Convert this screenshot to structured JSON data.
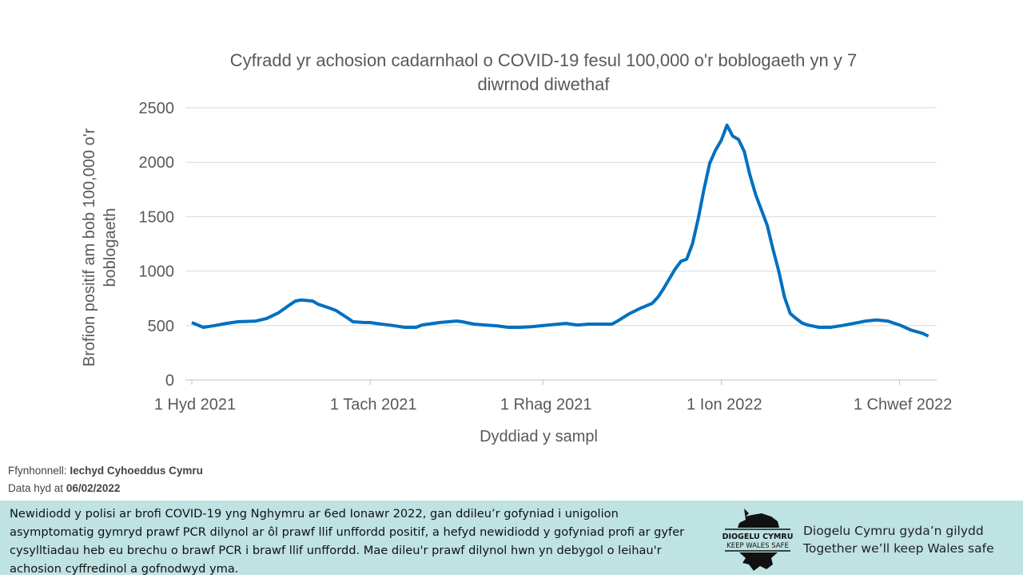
{
  "chart_data": {
    "type": "line",
    "title": "Cyfradd yr achosion cadarnhaol o COVID-19 fesul 100,000 o'r boblogaeth yn y 7 diwrnod diwethaf",
    "title_lines": [
      "Cyfradd yr achosion cadarnhaol o COVID-19 fesul 100,000 o'r boblogaeth yn y 7",
      "diwrnod diwethaf"
    ],
    "xlabel": "Dyddiad y sampl",
    "ylabel_lines": [
      "Brofion positif  am bob 100,000 o'r",
      "boblogaeth"
    ],
    "ylim": [
      0,
      2500
    ],
    "yticks": [
      0,
      500,
      1000,
      1500,
      2000,
      2500
    ],
    "xlim": [
      "2021-10-01",
      "2022-02-07"
    ],
    "xticks": [
      {
        "date": "2021-10-01",
        "label": "1 Hyd 2021"
      },
      {
        "date": "2021-11-01",
        "label": "1 Tach 2021"
      },
      {
        "date": "2021-12-01",
        "label": "1 Rhag 2021"
      },
      {
        "date": "2022-01-01",
        "label": "1 Ion 2022"
      },
      {
        "date": "2022-02-01",
        "label": "1 Chwef 2022"
      }
    ],
    "grid": true,
    "color": "#0070c0",
    "x": [
      "2021-10-01",
      "2021-10-03",
      "2021-10-05",
      "2021-10-07",
      "2021-10-09",
      "2021-10-12",
      "2021-10-14",
      "2021-10-16",
      "2021-10-18",
      "2021-10-19",
      "2021-10-20",
      "2021-10-22",
      "2021-10-23",
      "2021-10-25",
      "2021-10-26",
      "2021-10-28",
      "2021-10-29",
      "2021-10-31",
      "2021-11-01",
      "2021-11-02",
      "2021-11-05",
      "2021-11-07",
      "2021-11-09",
      "2021-11-10",
      "2021-11-13",
      "2021-11-16",
      "2021-11-17",
      "2021-11-19",
      "2021-11-21",
      "2021-11-23",
      "2021-11-25",
      "2021-11-27",
      "2021-11-29",
      "2021-12-02",
      "2021-12-05",
      "2021-12-07",
      "2021-12-09",
      "2021-12-13",
      "2021-12-14",
      "2021-12-16",
      "2021-12-18",
      "2021-12-20",
      "2021-12-21",
      "2021-12-22",
      "2021-12-23",
      "2021-12-24",
      "2021-12-25",
      "2021-12-26",
      "2021-12-27",
      "2021-12-28",
      "2021-12-29",
      "2021-12-30",
      "2021-12-31",
      "2022-01-01",
      "2022-01-02",
      "2022-01-03",
      "2022-01-04",
      "2022-01-05",
      "2022-01-06",
      "2022-01-07",
      "2022-01-08",
      "2022-01-09",
      "2022-01-10",
      "2022-01-11",
      "2022-01-12",
      "2022-01-13",
      "2022-01-14",
      "2022-01-15",
      "2022-01-16",
      "2022-01-17",
      "2022-01-18",
      "2022-01-20",
      "2022-01-22",
      "2022-01-24",
      "2022-01-26",
      "2022-01-28",
      "2022-01-30",
      "2022-02-01",
      "2022-02-03",
      "2022-02-05",
      "2022-02-06"
    ],
    "y": [
      528,
      484,
      500,
      520,
      535,
      540,
      565,
      615,
      690,
      725,
      735,
      725,
      695,
      660,
      640,
      572,
      535,
      528,
      528,
      520,
      500,
      484,
      484,
      505,
      528,
      542,
      535,
      513,
      505,
      498,
      484,
      484,
      490,
      505,
      520,
      505,
      513,
      513,
      542,
      608,
      660,
      704,
      760,
      840,
      930,
      1020,
      1090,
      1110,
      1250,
      1480,
      1750,
      1990,
      2110,
      2200,
      2340,
      2240,
      2210,
      2100,
      1880,
      1700,
      1560,
      1420,
      1200,
      1000,
      760,
      610,
      565,
      525,
      505,
      495,
      484,
      484,
      500,
      520,
      540,
      552,
      540,
      505,
      458,
      428,
      403
    ]
  },
  "footer": {
    "source_label": "Ffynhonnell:",
    "source_value": "Iechyd Cyhoeddus Cymru",
    "date_label": "Data hyd at",
    "date_value": "06/02/2022"
  },
  "banner": {
    "note": "Newidiodd y polisi ar brofi COVID-19 yng Nghymru ar 6ed Ionawr 2022, gan ddileu’r gofyniad i unigolion asymptomatig gymryd prawf PCR dilynol ar ôl prawf llif unffordd positif, a hefyd newidiodd y gofyniad profi ar gyfer cysylltiadau heb eu brechu o brawf PCR i brawf llif unffordd. Mae dileu'r prawf dilynol hwn yn debygol o leihau'r achosion cyffredinol a gofnodwyd yma.",
    "logo_text": [
      "DIOGELU CYMRU",
      "KEEP WALES SAFE"
    ],
    "tagline": [
      "Diogelu Cymru gyda’n gilydd",
      "Together we’ll keep Wales safe"
    ],
    "background": "#bfe2e3"
  }
}
